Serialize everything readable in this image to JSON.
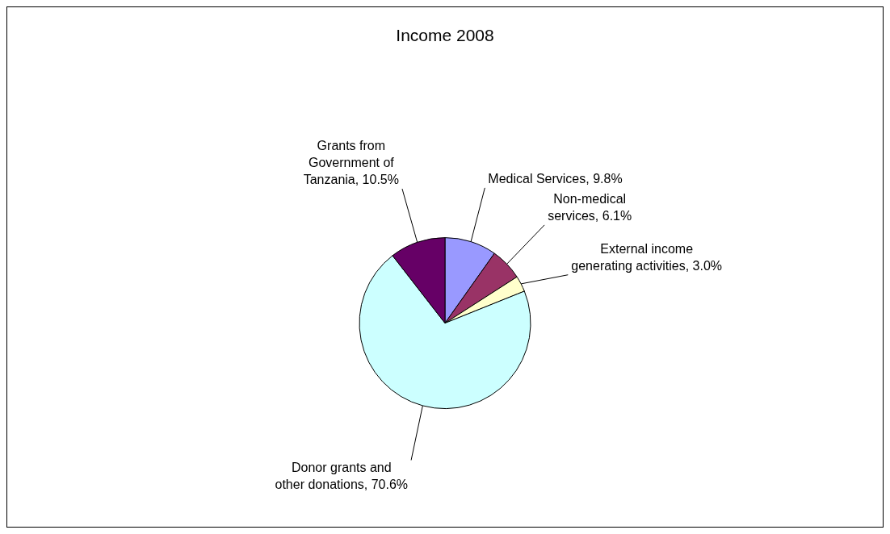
{
  "chart_data": {
    "type": "pie",
    "title": "Income 2008",
    "categories": [
      "Medical Services",
      "Non-medical services",
      "External income generating activities",
      "Donor grants and other donations",
      "Grants from Government of Tanzania"
    ],
    "values": [
      9.8,
      6.1,
      3.0,
      70.6,
      10.5
    ],
    "value_labels": [
      "9.8%",
      "6.1%",
      "3.0%",
      "70.6%",
      "10.5%"
    ],
    "colors": [
      "#9999ff",
      "#993366",
      "#ffffcc",
      "#ccffff",
      "#660066"
    ],
    "legend": false
  }
}
